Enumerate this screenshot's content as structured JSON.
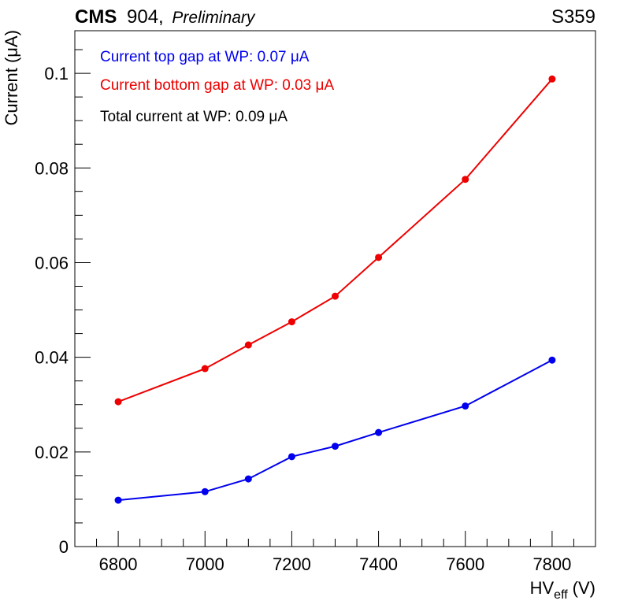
{
  "header": {
    "experiment": "CMS",
    "site": "904,",
    "status": "Preliminary",
    "chamber_id": "S359"
  },
  "chart_data": {
    "type": "line",
    "xlabel": "HV",
    "xlabel_sub": "eff",
    "xlabel_unit": "(V)",
    "ylabel": "Current (μA)",
    "xlim": [
      6700,
      7900
    ],
    "ylim": [
      0,
      0.109
    ],
    "x_ticks": [
      6800,
      7000,
      7200,
      7400,
      7600,
      7800
    ],
    "y_ticks": [
      0,
      0.02,
      0.04,
      0.06,
      0.08,
      0.1
    ],
    "y_tick_labels": [
      "0",
      "0.02",
      "0.04",
      "0.06",
      "0.08",
      "0.1"
    ],
    "grid": false,
    "series": [
      {
        "color": "#0000ee",
        "x": [
          6800,
          7000,
          7100,
          7200,
          7300,
          7400,
          7600,
          7800
        ],
        "y": [
          0.0098,
          0.0116,
          0.0143,
          0.019,
          0.0212,
          0.0241,
          0.0297,
          0.0394
        ]
      },
      {
        "color": "#ee0000",
        "x": [
          6800,
          7000,
          7100,
          7200,
          7300,
          7400,
          7600,
          7800
        ],
        "y": [
          0.0306,
          0.0376,
          0.0426,
          0.0475,
          0.0529,
          0.0611,
          0.0776,
          0.0988
        ]
      }
    ],
    "annotations": [
      {
        "text": "Current top gap at WP: 0.07 μA",
        "color": "#0000ee"
      },
      {
        "text": "Current bottom gap at WP: 0.03 μA",
        "color": "#ee0000"
      },
      {
        "text": "Total current at WP: 0.09 μA",
        "color": "#000000"
      }
    ]
  }
}
